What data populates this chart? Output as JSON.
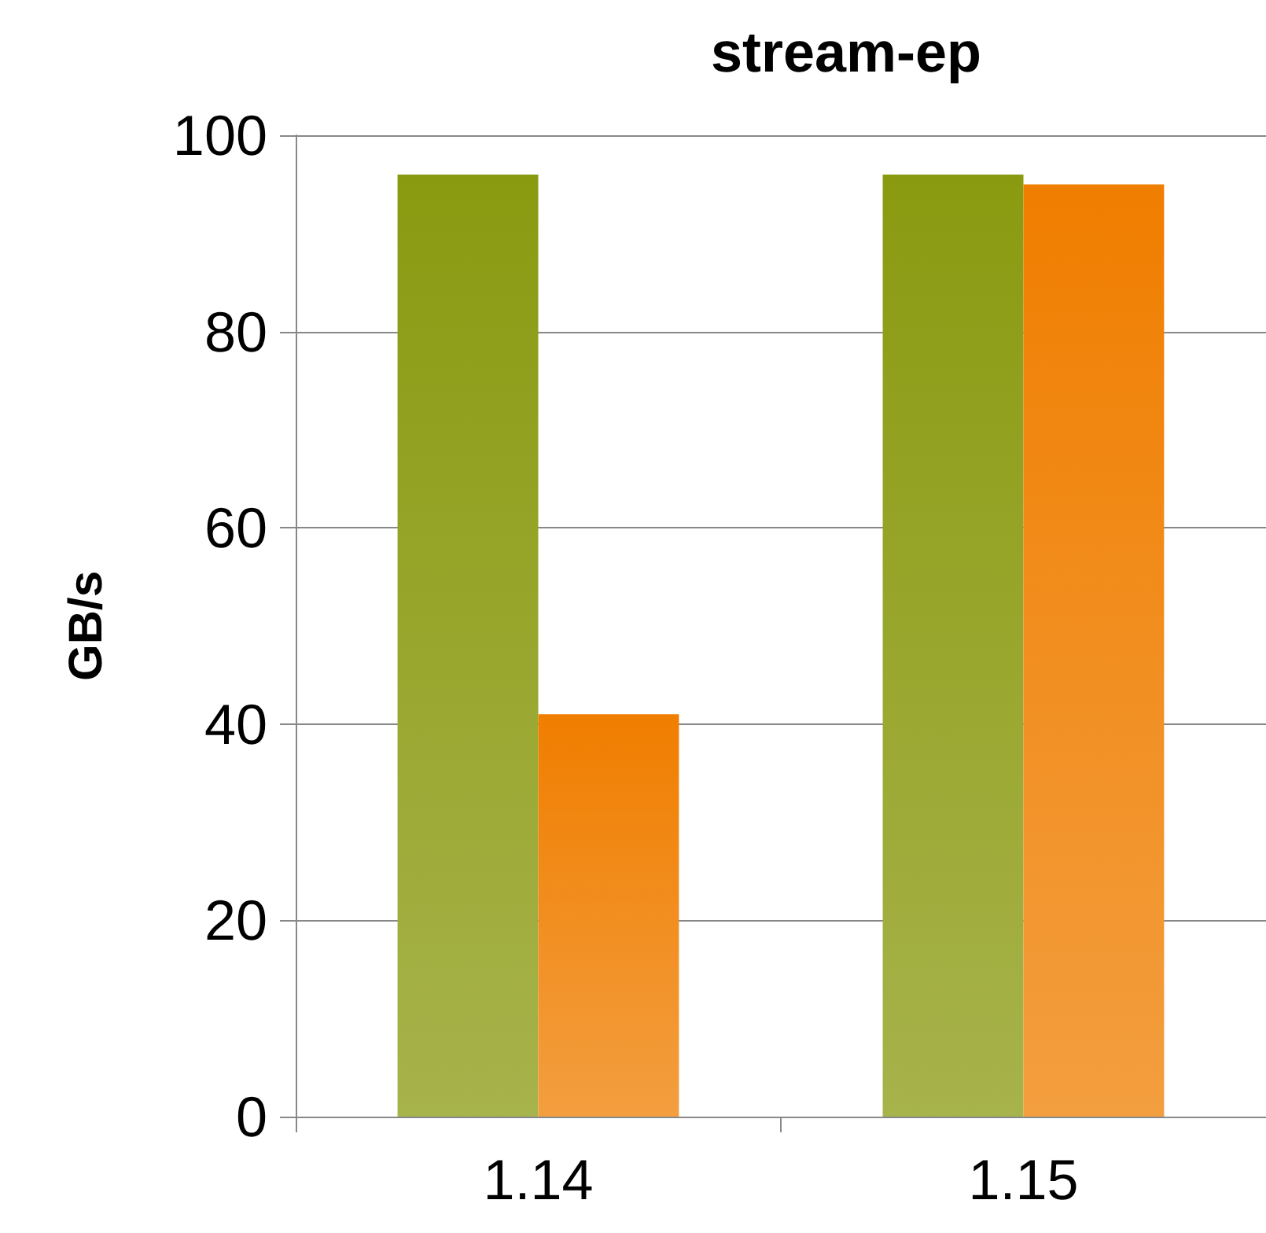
{
  "chart_data": {
    "type": "bar",
    "title": "stream-ep",
    "ylabel": "GB/s",
    "categories": [
      "1.14",
      "1.15"
    ],
    "series": [
      {
        "color": "#8a9a10",
        "values": [
          96,
          96
        ]
      },
      {
        "color": "#f07e00",
        "values": [
          41,
          95
        ]
      }
    ],
    "ylim": [
      0,
      100
    ],
    "yticks": [
      0,
      20,
      40,
      60,
      80,
      100
    ],
    "grid": "y"
  }
}
